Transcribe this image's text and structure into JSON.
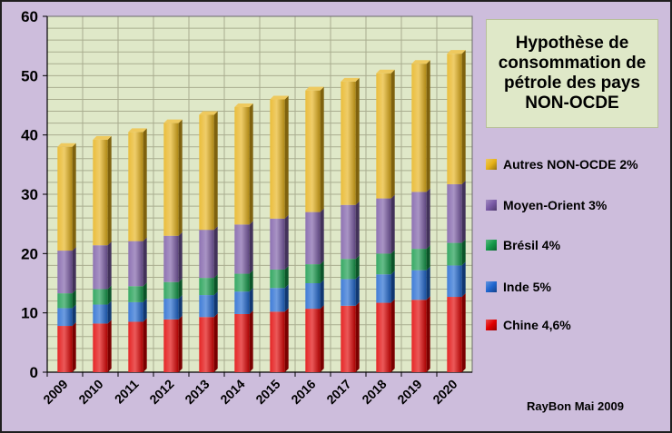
{
  "title": "Hypothèse de\nconsommation  de\npétrole des pays\nNON-OCDE",
  "credit": "RayBon Mai 2009",
  "chart_data": {
    "type": "bar",
    "stacked": true,
    "categories": [
      "2009",
      "2010",
      "2011",
      "2012",
      "2013",
      "2014",
      "2015",
      "2016",
      "2017",
      "2018",
      "2019",
      "2020"
    ],
    "ylim": [
      0,
      60
    ],
    "yticks": [
      0,
      10,
      20,
      30,
      40,
      50,
      60
    ],
    "grid": true,
    "legend_position": "right",
    "series": [
      {
        "name": "Chine 4,6%",
        "color": "#e00000",
        "values": [
          7.8,
          8.2,
          8.5,
          8.9,
          9.3,
          9.8,
          10.2,
          10.7,
          11.2,
          11.7,
          12.2,
          12.7
        ]
      },
      {
        "name": "Inde 5%",
        "color": "#1f66d0",
        "values": [
          3.0,
          3.2,
          3.3,
          3.5,
          3.7,
          3.8,
          4.0,
          4.3,
          4.5,
          4.8,
          5.0,
          5.3
        ]
      },
      {
        "name": "Brésil 4%",
        "color": "#149a4a",
        "values": [
          2.5,
          2.6,
          2.7,
          2.8,
          2.9,
          3.0,
          3.1,
          3.2,
          3.4,
          3.5,
          3.6,
          3.8
        ]
      },
      {
        "name": "Moyen-Orient 3%",
        "color": "#7a5aa6",
        "values": [
          7.2,
          7.4,
          7.6,
          7.8,
          8.1,
          8.3,
          8.6,
          8.8,
          9.1,
          9.3,
          9.6,
          9.9
        ]
      },
      {
        "name": "Autres NON-OCDE 2%",
        "color": "#e6b219",
        "values": [
          17.5,
          17.8,
          18.4,
          19.0,
          19.4,
          19.8,
          20.1,
          20.5,
          20.8,
          21.1,
          21.6,
          22.0
        ]
      }
    ]
  }
}
